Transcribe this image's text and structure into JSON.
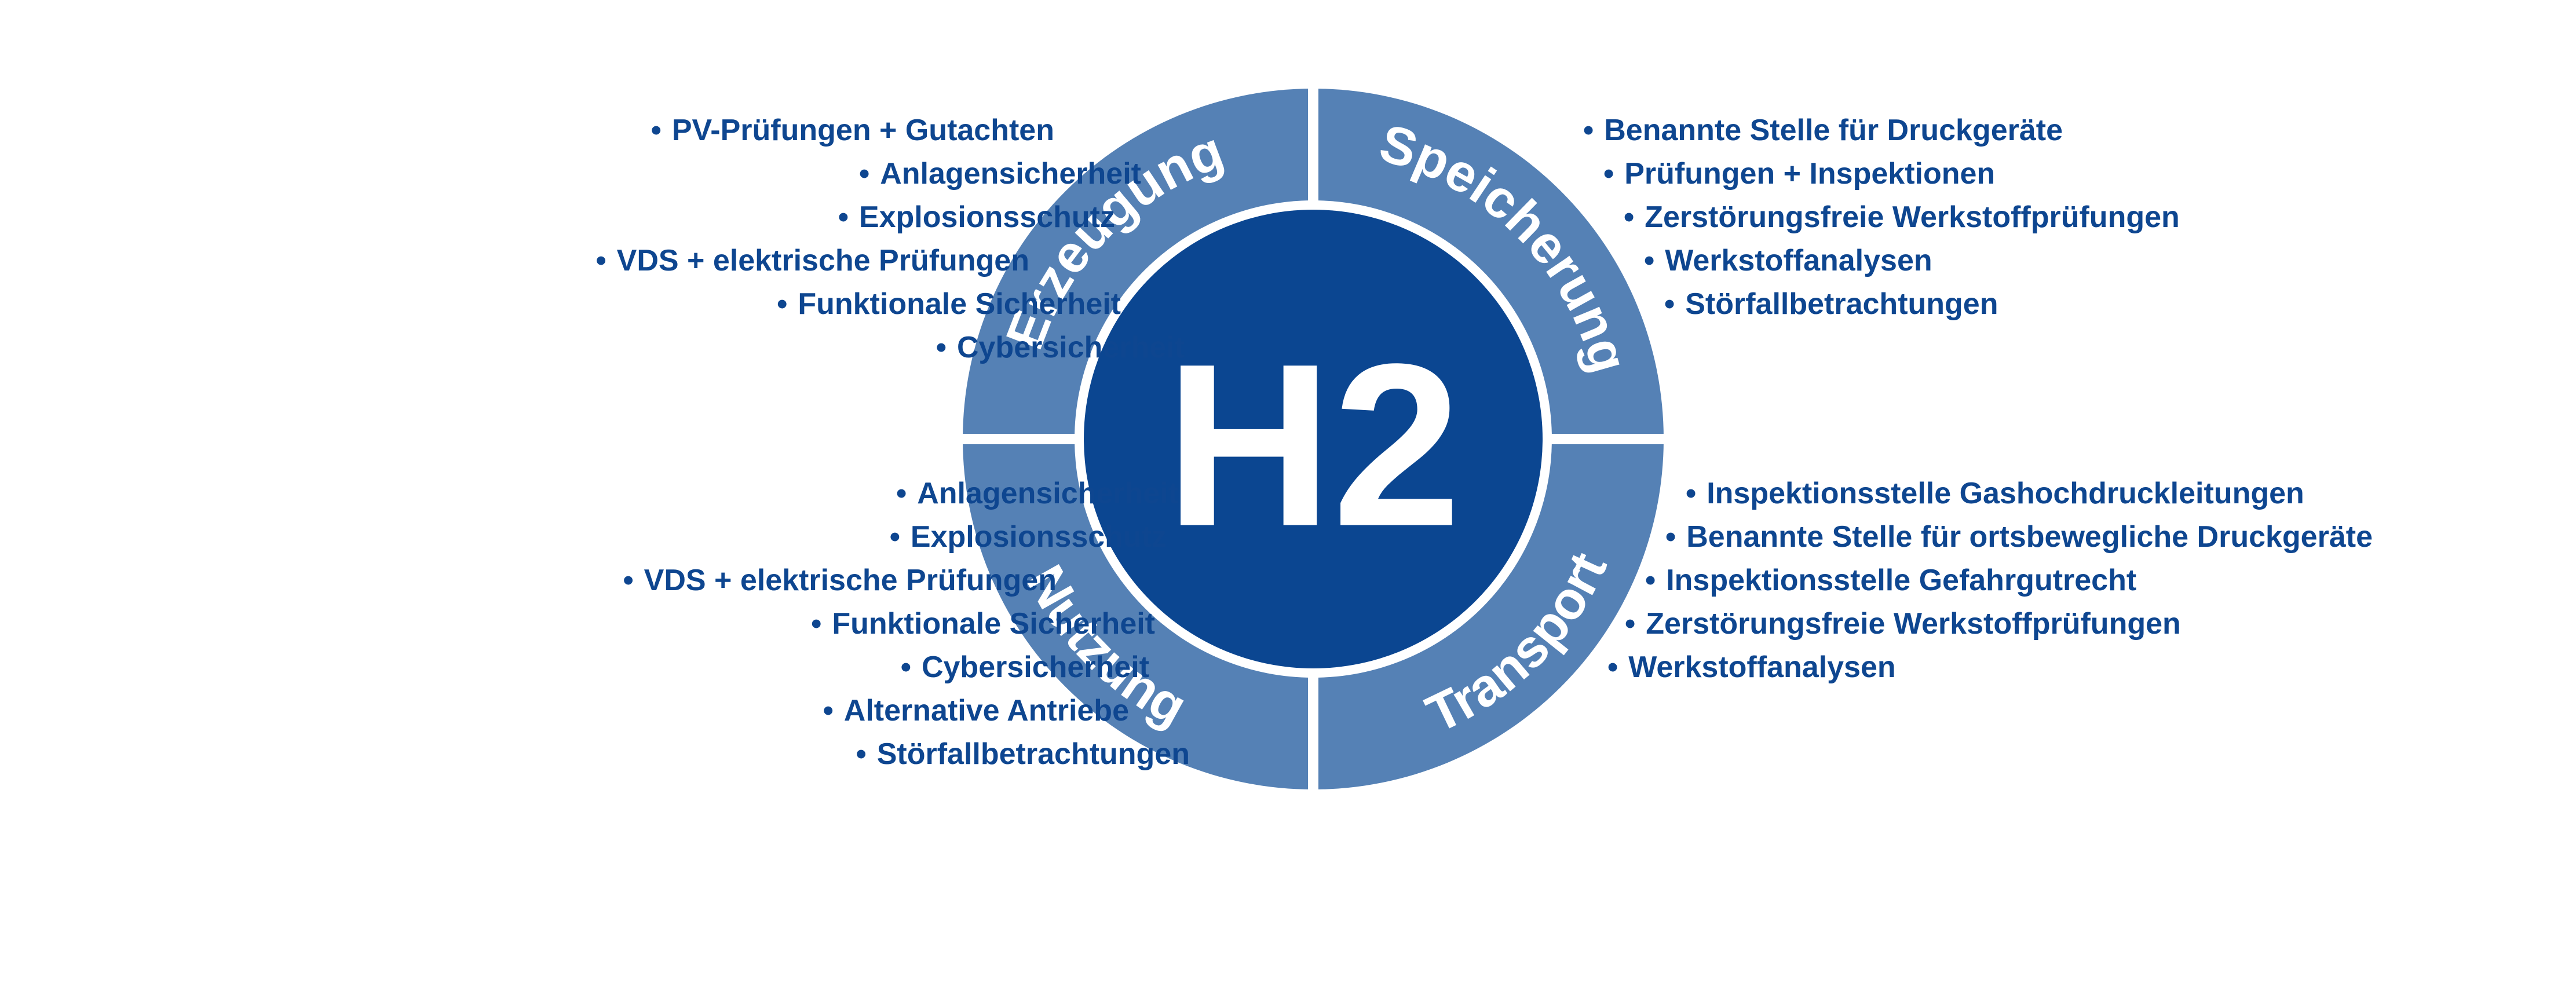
{
  "colors": {
    "ring": "#5581b5",
    "core": "#0b4691",
    "text": "#0e4690",
    "white": "#ffffff"
  },
  "center_label": "H2",
  "bullet_glyph": "•",
  "segments": [
    {
      "id": "erzeugung",
      "title": "Erzeugung",
      "items": [
        "PV-Prüfungen + Gutachten",
        "Anlagensicherheit",
        "Explosionsschutz",
        "VDS + elektrische Prüfungen",
        "Funktionale Sicherheit",
        "Cybersicherheit"
      ]
    },
    {
      "id": "speicherung",
      "title": "Speicherung",
      "items": [
        "Benannte Stelle für Druckgeräte",
        "Prüfungen + Inspektionen",
        "Zerstörungsfreie Werkstoffprüfungen",
        "Werkstoffanalysen",
        "Störfallbetrachtungen"
      ]
    },
    {
      "id": "nutzung",
      "title": "Nutzung",
      "items": [
        "Anlagensicherheit",
        "Explosionsschutz",
        "VDS + elektrische Prüfungen",
        "Funktionale Sicherheit",
        "Cybersicherheit",
        "Alternative Antriebe",
        "Störfallbetrachtungen"
      ]
    },
    {
      "id": "transport",
      "title": "Transport",
      "items": [
        "Inspektionsstelle Gashochdruckleitungen",
        "Benannte Stelle für ortsbewegliche Druckgeräte",
        "Inspektionsstelle Gefahrgutrecht",
        "Zerstörungsfreie Werkstoffprüfungen",
        "Werkstoffanalysen"
      ]
    }
  ]
}
